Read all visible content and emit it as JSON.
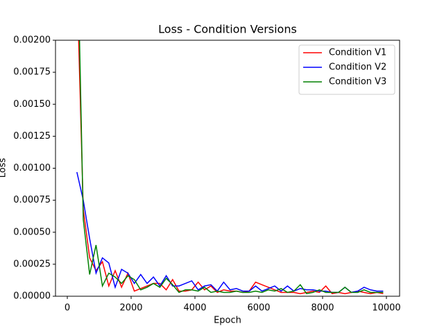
{
  "chart_data": {
    "type": "line",
    "title": "Loss - Condition Versions",
    "x_label": "Epoch",
    "y_label": "Loss",
    "x": [
      300,
      500,
      700,
      900,
      1100,
      1300,
      1500,
      1700,
      1900,
      2100,
      2300,
      2500,
      2700,
      2900,
      3100,
      3300,
      3500,
      3700,
      3900,
      4100,
      4300,
      4500,
      4700,
      4900,
      5100,
      5300,
      5500,
      5700,
      5900,
      6100,
      6300,
      6500,
      6700,
      6900,
      7100,
      7300,
      7500,
      7700,
      7900,
      8100,
      8300,
      8500,
      8700,
      8900,
      9100,
      9300,
      9500,
      9700,
      9900
    ],
    "series": [
      {
        "name": "Condition V1",
        "color": "#ff0000",
        "values": [
          0.0025,
          0.00068,
          0.0003,
          0.0002,
          0.00027,
          8e-05,
          0.0002,
          7e-05,
          0.00018,
          4e-05,
          6e-05,
          8e-05,
          0.0001,
          0.0001,
          5e-05,
          0.00013,
          4e-05,
          4e-05,
          5e-05,
          0.00011,
          5e-05,
          8e-05,
          3e-05,
          5e-05,
          4e-05,
          4e-05,
          3e-05,
          4e-05,
          0.00011,
          9e-05,
          7e-05,
          5e-05,
          3e-05,
          3e-05,
          3e-05,
          2e-05,
          3e-05,
          4e-05,
          3e-05,
          8e-05,
          2e-05,
          3e-05,
          2e-05,
          3e-05,
          4e-05,
          3e-05,
          2e-05,
          3e-05,
          2e-05
        ]
      },
      {
        "name": "Condition V2",
        "color": "#0000ff",
        "values": [
          0.00097,
          0.00075,
          0.00045,
          0.00018,
          0.0003,
          0.00026,
          7e-05,
          0.00021,
          0.00018,
          0.0001,
          0.00017,
          0.0001,
          0.00015,
          8e-05,
          0.00016,
          8e-05,
          8e-05,
          0.0001,
          0.00012,
          5e-05,
          8e-05,
          9e-05,
          4e-05,
          0.00011,
          5e-05,
          6e-05,
          4e-05,
          4e-05,
          8e-05,
          4e-05,
          6e-05,
          8e-05,
          4e-05,
          8e-05,
          4e-05,
          6e-05,
          5e-05,
          5e-05,
          4e-05,
          4e-05,
          3e-05,
          3e-05,
          7e-05,
          3e-05,
          4e-05,
          7e-05,
          5e-05,
          4e-05,
          4e-05
        ]
      },
      {
        "name": "Condition V3",
        "color": "#008000",
        "values": [
          0.003,
          0.0006,
          0.00017,
          0.0004,
          8e-05,
          0.00018,
          0.00015,
          0.0001,
          0.00016,
          0.00013,
          5e-05,
          7e-05,
          0.0001,
          7e-05,
          0.00014,
          9e-05,
          3e-05,
          5e-05,
          5e-05,
          4e-05,
          7e-05,
          3e-05,
          4e-05,
          3e-05,
          3e-05,
          4e-05,
          3e-05,
          3e-05,
          4e-05,
          3e-05,
          5e-05,
          4e-05,
          6e-05,
          3e-05,
          4e-05,
          9e-05,
          2e-05,
          3e-05,
          5e-05,
          3e-05,
          3e-05,
          3e-05,
          7e-05,
          3e-05,
          3e-05,
          5e-05,
          3e-05,
          3e-05,
          3e-05
        ]
      }
    ],
    "xlim": [
      -370,
      10413
    ],
    "ylim": [
      0,
      0.002
    ],
    "xticks": [
      0,
      2000,
      4000,
      6000,
      8000,
      10000
    ],
    "yticks": [
      {
        "value": 0,
        "label": "0.00000"
      },
      {
        "value": 0.00025,
        "label": "0.00025"
      },
      {
        "value": 0.0005,
        "label": "0.00050"
      },
      {
        "value": 0.00075,
        "label": "0.00075"
      },
      {
        "value": 0.001,
        "label": "0.00100"
      },
      {
        "value": 0.00125,
        "label": "0.00125"
      },
      {
        "value": 0.0015,
        "label": "0.00150"
      },
      {
        "value": 0.00175,
        "label": "0.00175"
      },
      {
        "value": 0.002,
        "label": "0.00200"
      }
    ],
    "legend": "upper right",
    "grid": false
  }
}
